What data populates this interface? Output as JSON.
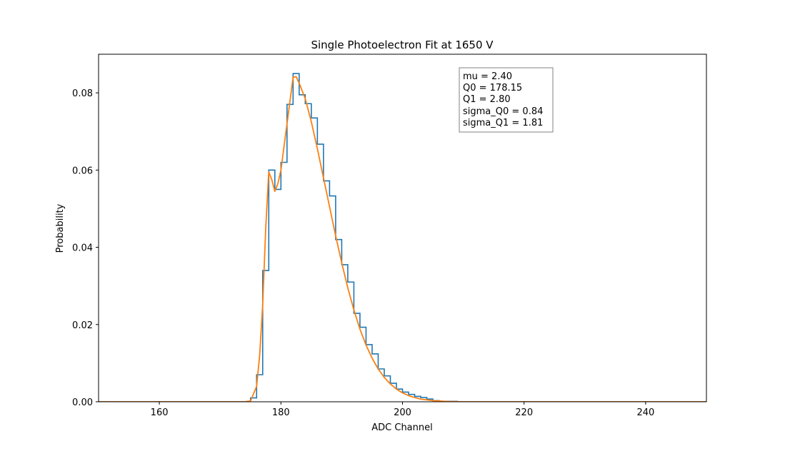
{
  "chart_data": {
    "type": "line",
    "title": "Single Photoelectron Fit at 1650 V",
    "xlabel": "ADC Channel",
    "ylabel": "Probability",
    "xlim": [
      150,
      250
    ],
    "ylim": [
      0,
      0.09
    ],
    "xticks": [
      160,
      180,
      200,
      220,
      240
    ],
    "yticks": [
      0.0,
      0.02,
      0.04,
      0.06,
      0.08
    ],
    "ytick_labels": [
      "0.00",
      "0.02",
      "0.04",
      "0.06",
      "0.08"
    ],
    "grid": false,
    "colors": {
      "histogram": "#1f77b4",
      "fit": "#ff7f0e"
    },
    "histogram": {
      "bin_edges": [
        150,
        151,
        152,
        153,
        154,
        155,
        156,
        157,
        158,
        159,
        160,
        161,
        162,
        163,
        164,
        165,
        166,
        167,
        168,
        169,
        170,
        171,
        172,
        173,
        174,
        175,
        176,
        177,
        178,
        179,
        180,
        181,
        182,
        183,
        184,
        185,
        186,
        187,
        188,
        189,
        190,
        191,
        192,
        193,
        194,
        195,
        196,
        197,
        198,
        199,
        200,
        201,
        202,
        203,
        204,
        205,
        206,
        207,
        208,
        209,
        210,
        211,
        212,
        213,
        214,
        215,
        216,
        217,
        218,
        219,
        220,
        221,
        222,
        223,
        224,
        225,
        226,
        227,
        228,
        229,
        230,
        231,
        232,
        233,
        234,
        235,
        236,
        237,
        238,
        239,
        240,
        241,
        242,
        243,
        244,
        245,
        246,
        247,
        248,
        249,
        250
      ],
      "counts": [
        0,
        0,
        0,
        0,
        0,
        0,
        0,
        0,
        0,
        0,
        0,
        0,
        0,
        0,
        0,
        0,
        0,
        0,
        0,
        0,
        0,
        0,
        0,
        0,
        0,
        0.001,
        0.007,
        0.034,
        0.06,
        0.055,
        0.062,
        0.077,
        0.085,
        0.0795,
        0.0772,
        0.0735,
        0.0667,
        0.0572,
        0.0533,
        0.042,
        0.0355,
        0.031,
        0.0229,
        0.0193,
        0.0148,
        0.0124,
        0.0085,
        0.0067,
        0.0048,
        0.0033,
        0.0025,
        0.0019,
        0.0014,
        0.0011,
        0.0007,
        0.0003,
        0.0001,
        0.0001,
        0.0001,
        0,
        0,
        0,
        0,
        0,
        0,
        0,
        0,
        0,
        0,
        0,
        0,
        0,
        0,
        0,
        0,
        0,
        0,
        0,
        0,
        0,
        0,
        0,
        0,
        0,
        0,
        0,
        0,
        0,
        0,
        0,
        0,
        0,
        0,
        0,
        0,
        0,
        0,
        0,
        0,
        0,
        0
      ]
    },
    "fit": {
      "x": [
        150,
        170,
        174,
        175,
        176,
        176.5,
        177,
        177.5,
        178,
        178.5,
        179,
        179.5,
        180,
        181,
        182,
        182.5,
        183,
        184,
        185,
        186,
        187,
        188,
        189,
        190,
        191,
        192,
        193,
        194,
        195,
        196,
        197,
        198,
        199,
        200,
        201,
        202,
        203,
        204,
        205,
        206,
        207,
        208,
        210,
        230,
        250
      ],
      "y": [
        0,
        0,
        0,
        0.0002,
        0.004,
        0.012,
        0.025,
        0.045,
        0.0595,
        0.0575,
        0.0545,
        0.0565,
        0.06,
        0.072,
        0.084,
        0.0842,
        0.0825,
        0.0785,
        0.0725,
        0.0655,
        0.058,
        0.0505,
        0.043,
        0.036,
        0.0295,
        0.0238,
        0.0188,
        0.0147,
        0.0113,
        0.0085,
        0.0063,
        0.0046,
        0.0033,
        0.0023,
        0.0016,
        0.0011,
        0.0007,
        0.0005,
        0.0003,
        0.0002,
        0.0001,
        5e-05,
        0,
        0,
        0
      ]
    },
    "stats_box": {
      "placement": "top-right",
      "lines": [
        "mu = 2.40",
        "Q0 = 178.15",
        "Q1 = 2.80",
        "sigma_Q0 = 0.84",
        "sigma_Q1 = 1.81"
      ]
    }
  }
}
